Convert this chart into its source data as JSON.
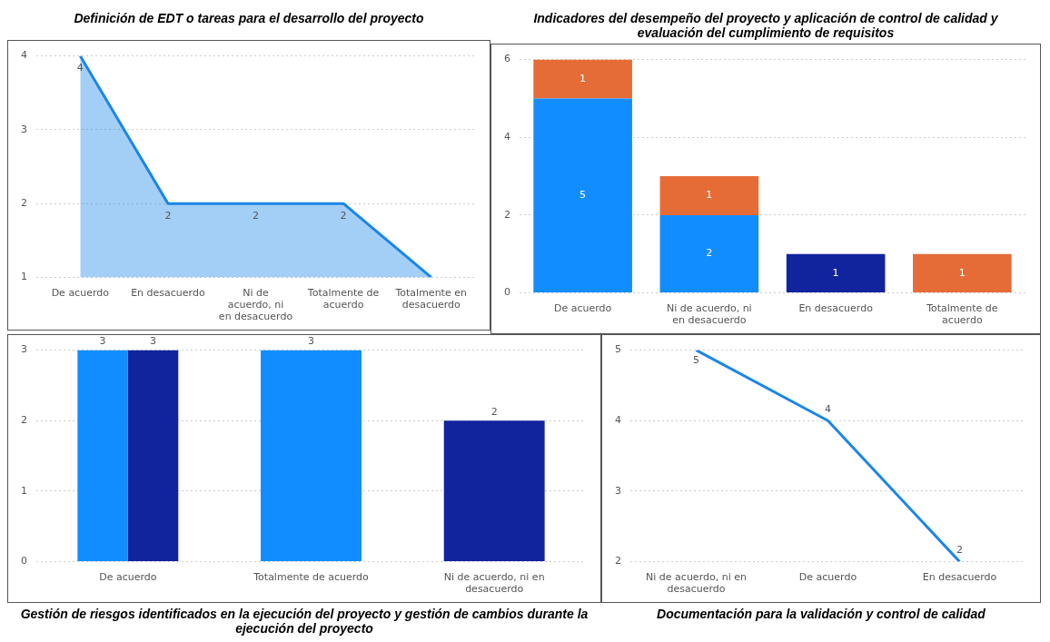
{
  "chart_data": [
    {
      "type": "area",
      "title": "Definición de EDT o tareas para el desarrollo del proyecto",
      "categories": [
        "De acuerdo",
        "En desacuerdo",
        "Ni de acuerdo, ni en desacuerdo",
        "Totalmente de acuerdo",
        "Totalmente en desacuerdo"
      ],
      "values": [
        4,
        2,
        2,
        2,
        1
      ],
      "value_labels": [
        "4",
        "2",
        "2",
        "2",
        null
      ],
      "color": "#1a86e8",
      "ylim": [
        1,
        4
      ],
      "yticks": [
        1,
        2,
        3,
        4
      ],
      "grid": "y",
      "marker": "none"
    },
    {
      "type": "bar",
      "stacked": true,
      "title": "Indicadores del desempeño del proyecto y aplicación de control de calidad y evaluación del cumplimiento de requisitos",
      "categories": [
        "De acuerdo",
        "Ni de acuerdo, ni en desacuerdo",
        "En desacuerdo",
        "Totalmente de acuerdo"
      ],
      "series": [
        {
          "color": "#118dff",
          "values": [
            5,
            2,
            null,
            null
          ]
        },
        {
          "color": "#12239e",
          "values": [
            null,
            null,
            1,
            null
          ]
        },
        {
          "color": "#e66c37",
          "values": [
            1,
            1,
            null,
            1
          ]
        }
      ],
      "ylim": [
        0,
        6
      ],
      "yticks": [
        0,
        2,
        4,
        6
      ],
      "grid": "y",
      "data_labels": true
    },
    {
      "type": "bar",
      "title": "Gestión de riesgos identificados en la ejecución del proyecto y gestión de cambios durante la ejecución del proyecto",
      "categories": [
        "De acuerdo",
        "Totalmente de acuerdo",
        "Ni de acuerdo, ni en desacuerdo"
      ],
      "series": [
        {
          "color": "#118dff",
          "values": [
            3,
            3,
            null
          ]
        },
        {
          "color": "#12239e",
          "values": [
            3,
            null,
            2
          ]
        }
      ],
      "ylim": [
        0,
        3
      ],
      "yticks": [
        0,
        1,
        2,
        3
      ],
      "grid": "y",
      "data_labels": true
    },
    {
      "type": "line",
      "title": "Documentación para la validación y control de calidad",
      "categories": [
        "Ni de acuerdo, ni en desacuerdo",
        "De acuerdo",
        "En desacuerdo"
      ],
      "values": [
        5,
        4,
        2
      ],
      "color": "#1a86e8",
      "ylim": [
        2,
        5
      ],
      "yticks": [
        2,
        3,
        4,
        5
      ],
      "grid": "y",
      "marker": "none",
      "data_labels": true
    }
  ]
}
